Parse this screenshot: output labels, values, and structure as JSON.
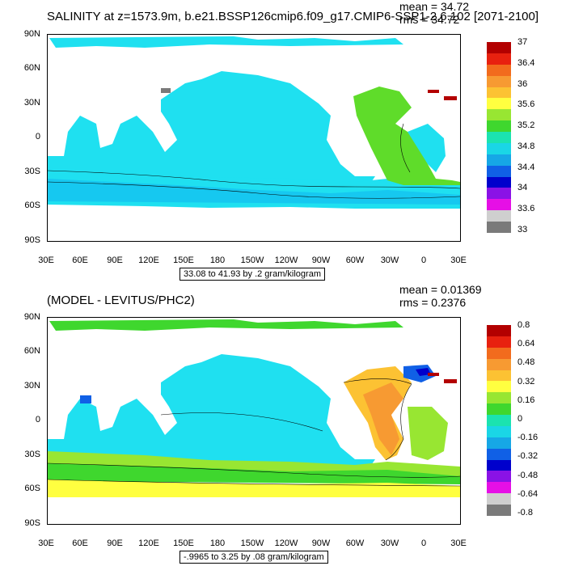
{
  "panels": [
    {
      "id": "salinity",
      "title": "SALINITY at z=1573.9m, b.e21.BSSP126cmip6.f09_g17.CMIP6-SSP1-2.6.102 [2071-2100]",
      "mean_label": "mean = 34.72",
      "rms_label": "rms = 34.72",
      "lat_labels": [
        "90N",
        "60N",
        "30N",
        "0",
        "30S",
        "60S",
        "90S"
      ],
      "lon_labels": [
        "30E",
        "60E",
        "90E",
        "120E",
        "150E",
        "180",
        "150W",
        "120W",
        "90W",
        "60W",
        "30W",
        "0",
        "30E"
      ],
      "range_label": "33.08 to 41.93 by .2 gram/kilogram",
      "colorbar": {
        "labels": [
          "37",
          "36.4",
          "36",
          "35.6",
          "35.2",
          "34.8",
          "34.4",
          "34",
          "33.6",
          "33"
        ],
        "colors": [
          "#b30000",
          "#e8210f",
          "#f26b1d",
          "#f79a32",
          "#fcc233",
          "#ffff40",
          "#98e632",
          "#3fd72e",
          "#1be3b0",
          "#1ad6e6",
          "#16a7e6",
          "#1060e6",
          "#0000cc",
          "#8a12e6",
          "#e60fe6",
          "#cfcfcf",
          "#7a7a7a"
        ]
      },
      "ocean_color": "#1fe0f0",
      "atlantic_color": "#5fdc2a"
    },
    {
      "id": "difference",
      "title": "(MODEL - LEVITUS/PHC2)",
      "mean_label": "mean = 0.01369",
      "rms_label": "rms = 0.2376",
      "lat_labels": [
        "90N",
        "60N",
        "30N",
        "0",
        "30S",
        "60S",
        "90S"
      ],
      "lon_labels": [
        "30E",
        "60E",
        "90E",
        "120E",
        "150E",
        "180",
        "150W",
        "120W",
        "90W",
        "60W",
        "30W",
        "0",
        "30E"
      ],
      "range_label": "-.9965 to 3.25 by .08 gram/kilogram",
      "colorbar": {
        "labels": [
          "0.8",
          "0.64",
          "0.48",
          "0.32",
          "0.16",
          "0",
          "-0.16",
          "-0.32",
          "-0.48",
          "-0.64",
          "-0.8"
        ],
        "colors": [
          "#b30000",
          "#e8210f",
          "#f26b1d",
          "#f79a32",
          "#fcc233",
          "#ffff40",
          "#98e632",
          "#3fd72e",
          "#1be3b0",
          "#1ad6e6",
          "#16a7e6",
          "#1060e6",
          "#0000cc",
          "#8a12e6",
          "#e60fe6",
          "#cfcfcf",
          "#7a7a7a"
        ]
      },
      "ocean_color": "#1fe0f0",
      "atlantic_color": "#f79a32"
    }
  ]
}
